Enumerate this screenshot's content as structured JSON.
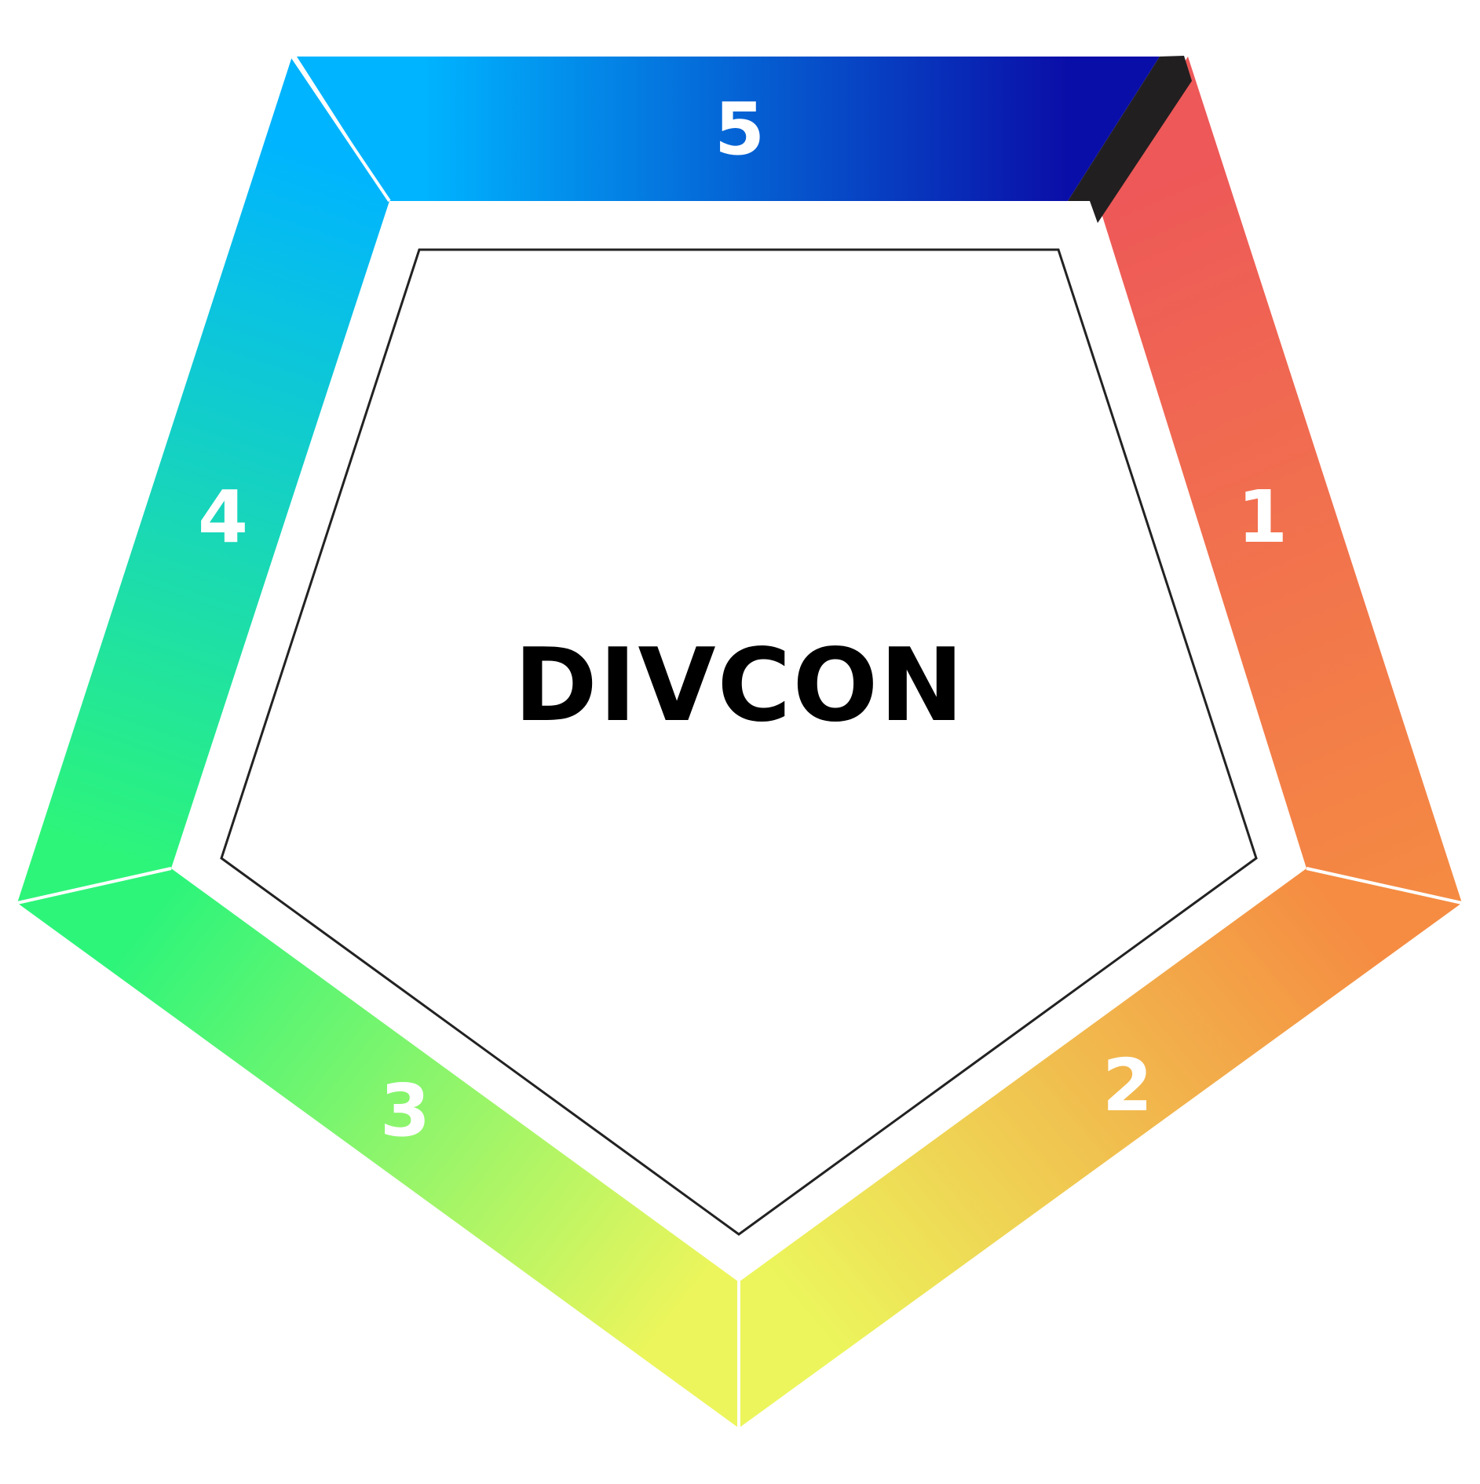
{
  "center": {
    "title": "DIVCON"
  },
  "segments": [
    {
      "id": "seg-1",
      "label": "1",
      "color_start": "#ee5858",
      "color_end": "#f58c42"
    },
    {
      "id": "seg-2",
      "label": "2",
      "color_start": "#f58c42",
      "color_end": "#ecf55c"
    },
    {
      "id": "seg-3",
      "label": "3",
      "color_start": "#ecf55c",
      "color_end": "#2df57a"
    },
    {
      "id": "seg-4",
      "label": "4",
      "color_start": "#2df57a",
      "color_end": "#00b4ff"
    },
    {
      "id": "seg-5",
      "label": "5",
      "color_start": "#00b4ff",
      "color_end": "#0a0ea8"
    }
  ],
  "colors": {
    "seam": "#221f20",
    "inner_border": "#222222",
    "background": "#ffffff"
  }
}
